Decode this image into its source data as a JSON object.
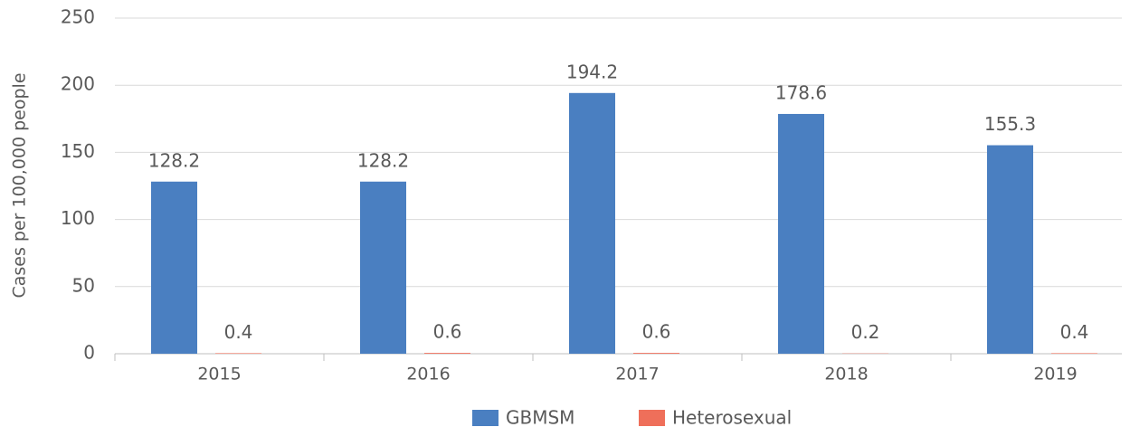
{
  "chart_data": {
    "type": "bar",
    "y_label": "Cases per 100,000 people",
    "categories": [
      "2015",
      "2016",
      "2017",
      "2018",
      "2019"
    ],
    "series": [
      {
        "name": "GBMSM",
        "color": "#4a7fc1",
        "values": [
          128.2,
          128.2,
          194.2,
          178.6,
          155.3
        ]
      },
      {
        "name": "Heterosexual",
        "color": "#ef6f5a",
        "values": [
          0.4,
          0.6,
          0.6,
          0.2,
          0.4
        ]
      }
    ],
    "ylim": [
      0,
      250
    ],
    "yticks": [
      0,
      50,
      100,
      150,
      200,
      250
    ],
    "grid": true,
    "legend": "bottom"
  }
}
